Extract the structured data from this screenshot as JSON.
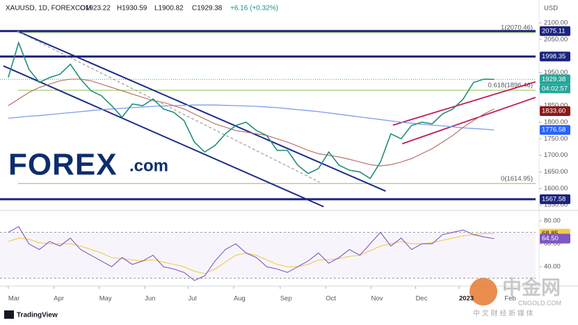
{
  "header": {
    "symbol": "XAUUSD, 1D, FOREXCOM",
    "open": "O1923.22",
    "high": "H1930.59",
    "low": "L1900.82",
    "close": "C1929.38",
    "change": "+6.16 (+0.32%)",
    "currency": "USD",
    "countdown": "04:02:57"
  },
  "branding": {
    "logo": "FOREX",
    "logo_suffix": ".com",
    "footer": "TradingView",
    "watermark": "中金网",
    "watermark_site": "CNGOLD.COM",
    "watermark_tagline": "中 文 财 经 新 媒 体"
  },
  "chart_data": [
    {
      "type": "line",
      "x": [
        0,
        1,
        2,
        3,
        4,
        5,
        6,
        7,
        8,
        9,
        10,
        11,
        12,
        13,
        14,
        15,
        16,
        17,
        18,
        19,
        20,
        21,
        22,
        23,
        24,
        25,
        26,
        27,
        28,
        29,
        30,
        31,
        32,
        33,
        34,
        35,
        36,
        37,
        38,
        39,
        40,
        41,
        42,
        43,
        44,
        45,
        46,
        47
      ],
      "xlim": [
        -0.8,
        51
      ],
      "xticks": [
        {
          "value": 0,
          "label": "Mar"
        },
        {
          "value": 4.4,
          "label": "Apr"
        },
        {
          "value": 8.8,
          "label": "May"
        },
        {
          "value": 13.2,
          "label": "Jun"
        },
        {
          "value": 17.4,
          "label": "Jul"
        },
        {
          "value": 21.8,
          "label": "Aug"
        },
        {
          "value": 26.3,
          "label": "Sep"
        },
        {
          "value": 30.7,
          "label": "Oct"
        },
        {
          "value": 35.1,
          "label": "Nov"
        },
        {
          "value": 39.4,
          "label": "Dec"
        },
        {
          "value": 43.6,
          "label": "2023",
          "strong": true
        },
        {
          "value": 48,
          "label": "Feb"
        }
      ],
      "ylim": [
        1540,
        2169
      ],
      "yticks": [
        {
          "value": 2100,
          "label": "2100.00"
        },
        {
          "value": 2050,
          "label": "2050.00"
        },
        {
          "value": 1950,
          "label": "1950.00"
        },
        {
          "value": 1900,
          "label": "1900.00"
        },
        {
          "value": 1850,
          "label": "1850.00"
        },
        {
          "value": 1800,
          "label": "1800.00"
        },
        {
          "value": 1750,
          "label": "1750.00"
        },
        {
          "value": 1700,
          "label": "1700.00"
        },
        {
          "value": 1650,
          "label": "1650.00"
        },
        {
          "value": 1600,
          "label": "1600.00"
        },
        {
          "value": 1550,
          "label": "1550.00"
        }
      ],
      "series": [
        {
          "color": "#7b9cf0",
          "width": 1.3,
          "values": [
            1812,
            1815,
            1818,
            1820,
            1823,
            1826,
            1829,
            1832,
            1835,
            1838,
            1840,
            1842,
            1844,
            1846,
            1848,
            1849,
            1850,
            1851,
            1852,
            1852,
            1852,
            1851,
            1850,
            1849,
            1848,
            1846,
            1844,
            1841,
            1838,
            1835,
            1832,
            1828,
            1824,
            1820,
            1816,
            1812,
            1808,
            1804,
            1800,
            1797,
            1794,
            1791,
            1789,
            1786,
            1783,
            1781,
            1779,
            1776.58
          ]
        },
        {
          "color": "#b0685a",
          "width": 1.1,
          "values": [
            1850,
            1870,
            1890,
            1905,
            1915,
            1925,
            1930,
            1930,
            1925,
            1915,
            1905,
            1895,
            1885,
            1875,
            1865,
            1860,
            1850,
            1840,
            1825,
            1810,
            1795,
            1785,
            1775,
            1770,
            1765,
            1760,
            1750,
            1740,
            1728,
            1715,
            1705,
            1700,
            1695,
            1688,
            1680,
            1672,
            1668,
            1672,
            1680,
            1690,
            1705,
            1720,
            1740,
            1760,
            1785,
            1805,
            1825,
            1840
          ]
        },
        {
          "color": "#1f8f7a",
          "width": 1.6,
          "values": [
            1935,
            2040,
            1960,
            1920,
            1935,
            1945,
            1975,
            1930,
            1895,
            1880,
            1850,
            1815,
            1855,
            1850,
            1870,
            1840,
            1830,
            1805,
            1740,
            1710,
            1730,
            1765,
            1790,
            1800,
            1775,
            1760,
            1715,
            1715,
            1670,
            1645,
            1660,
            1710,
            1670,
            1655,
            1650,
            1630,
            1680,
            1765,
            1750,
            1790,
            1800,
            1795,
            1825,
            1840,
            1870,
            1920,
            1930,
            1929.38
          ]
        }
      ],
      "trendlines": [
        {
          "color": "#1a2a8c",
          "width": 2,
          "points": [
            [
              0.87,
              2075
            ],
            [
              36.5,
              1592
            ]
          ]
        },
        {
          "color": "#1a2a8c",
          "width": 2,
          "points": [
            [
              -0.47,
              1970
            ],
            [
              30.5,
              1545
            ]
          ]
        },
        {
          "color": "#9a9a9a",
          "width": 1.2,
          "dash": true,
          "points": [
            [
              0.87,
              2075
            ],
            [
              30.1,
              1619
            ]
          ]
        },
        {
          "color": "#c2185b",
          "width": 1.8,
          "points": [
            [
              37.2,
              1791
            ],
            [
              51,
              1922
            ]
          ]
        },
        {
          "color": "#c2185b",
          "width": 1.8,
          "points": [
            [
              38.1,
              1735
            ],
            [
              51,
              1875
            ]
          ]
        }
      ],
      "fib": [
        {
          "value": 2070.46,
          "label": "1(2070.46)"
        },
        {
          "value": 1896.46,
          "label": "0.618(1896.46)"
        },
        {
          "value": 1614.95,
          "label": "0(1614.95)"
        }
      ],
      "levels": [
        {
          "value": 2075.11,
          "color": "#1a237e",
          "line": true
        },
        {
          "value": 1998.35,
          "color": "#1a237e",
          "line": true
        },
        {
          "value": 1929.38,
          "color": "#26a69a",
          "line": false
        },
        {
          "value": 1833.6,
          "label": "1833.60",
          "color": "#8b1a1a",
          "line": false
        },
        {
          "value": 1776.58,
          "color": "#2962ff",
          "line": false
        },
        {
          "value": 1567.58,
          "color": "#1a237e",
          "line": true
        }
      ]
    },
    {
      "type": "line",
      "x": [
        0,
        1,
        2,
        3,
        4,
        5,
        6,
        7,
        8,
        9,
        10,
        11,
        12,
        13,
        14,
        15,
        16,
        17,
        18,
        19,
        20,
        21,
        22,
        23,
        24,
        25,
        26,
        27,
        28,
        29,
        30,
        31,
        32,
        33,
        34,
        35,
        36,
        37,
        38,
        39,
        40,
        41,
        42,
        43,
        44,
        45,
        46,
        47
      ],
      "xlim": [
        -0.8,
        51
      ],
      "ylim": [
        25.5,
        87.9
      ],
      "yticks": [
        {
          "value": 80,
          "label": "80.00"
        },
        {
          "value": 60,
          "label": "60.00"
        },
        {
          "value": 40,
          "label": "40.00"
        }
      ],
      "band": [
        30,
        70
      ],
      "series": [
        {
          "color": "#f2c94c",
          "width": 1.1,
          "last_label": "68.85",
          "values": [
            62,
            65,
            64,
            61,
            60,
            60,
            60,
            58,
            55,
            52,
            48,
            47,
            46,
            45,
            46,
            44,
            42,
            40,
            36,
            34,
            38,
            44,
            50,
            52,
            50,
            46,
            42,
            40,
            40,
            42,
            46,
            46,
            47,
            49,
            50,
            54,
            58,
            60,
            62,
            60,
            60,
            61,
            63,
            65,
            67,
            68,
            69,
            68.85
          ]
        },
        {
          "color": "#7e57c2",
          "width": 1.1,
          "last_label": "64.50",
          "values": [
            70,
            75,
            60,
            55,
            62,
            58,
            65,
            55,
            50,
            45,
            40,
            48,
            42,
            45,
            50,
            40,
            38,
            35,
            28,
            32,
            45,
            55,
            60,
            52,
            48,
            40,
            38,
            35,
            40,
            45,
            52,
            43,
            48,
            55,
            50,
            60,
            70,
            58,
            65,
            55,
            60,
            60,
            68,
            70,
            72,
            68,
            66,
            64.5
          ]
        }
      ]
    }
  ]
}
